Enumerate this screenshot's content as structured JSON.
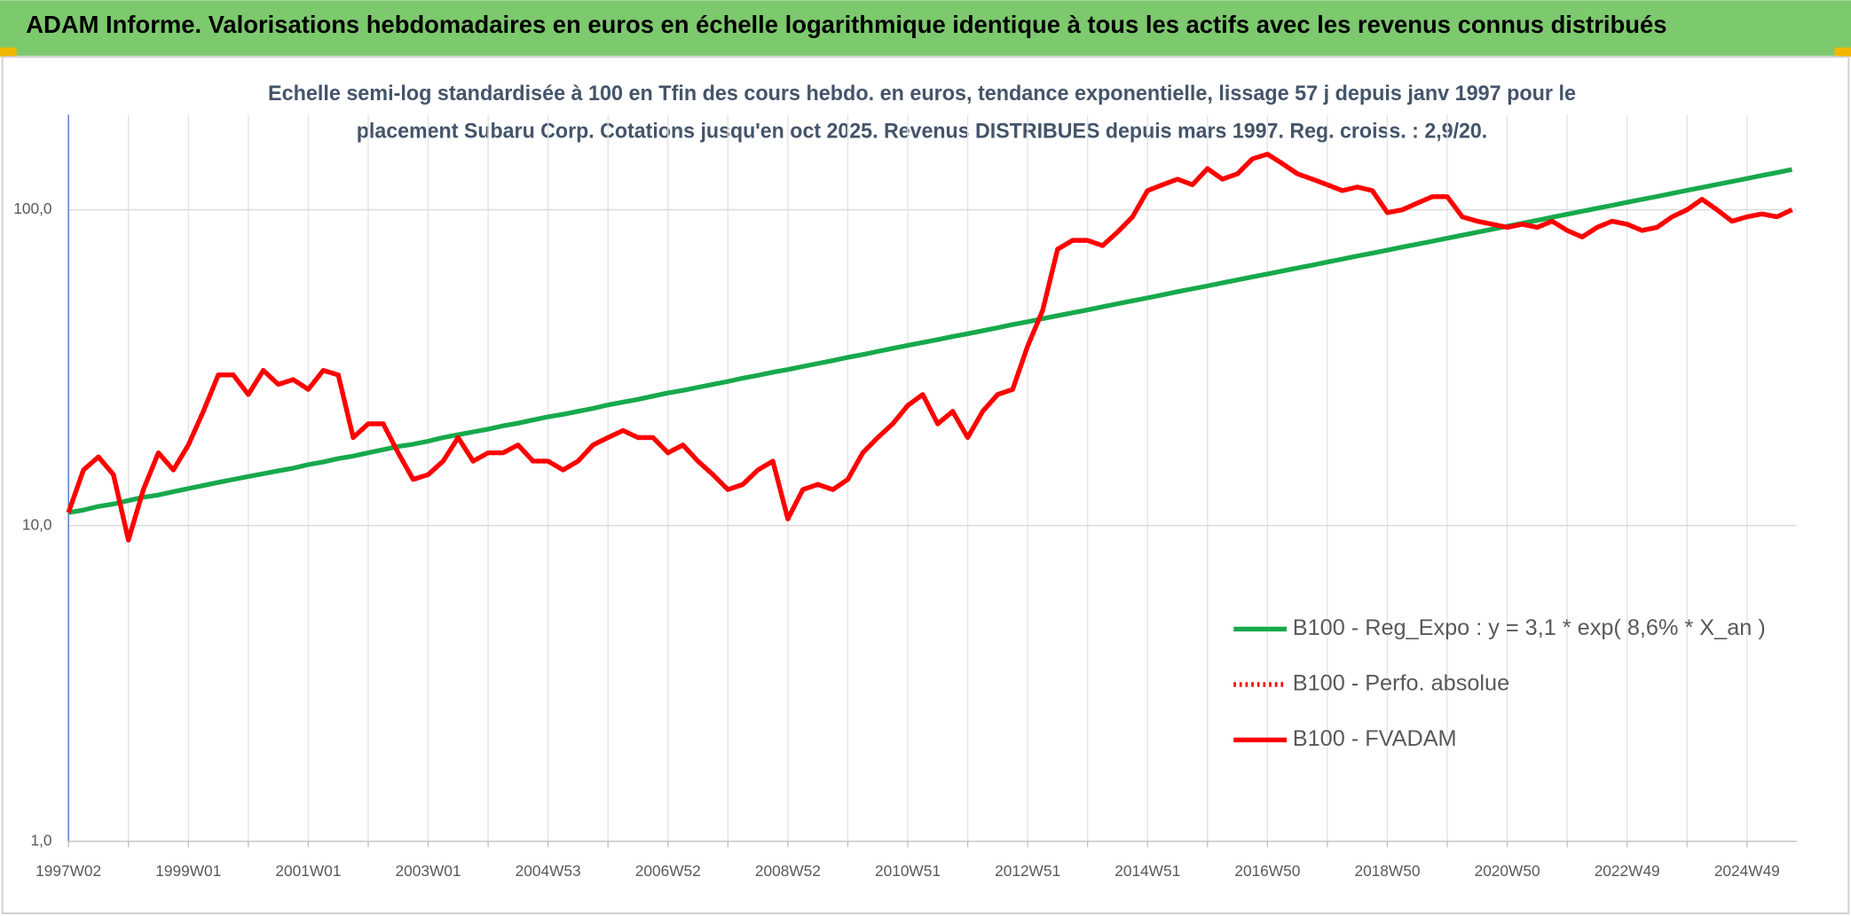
{
  "header": {
    "title": "ADAM Informe. Valorisations hebdomadaires en euros en échelle logarithmique identique à tous les actifs avec les revenus connus distribués"
  },
  "chart_data": {
    "type": "line",
    "title": [
      "Echelle semi-log standardisée à 100 en Tfin des cours hebdo. en euros, tendance exponentielle, lissage 57 j depuis janv 1997 pour le",
      "placement Subaru Corp. Cotations jusqu'en oct 2025. Revenus DISTRIBUES depuis mars 1997. Reg. croiss. : 2,9/20."
    ],
    "categories": [
      "1997W02",
      null,
      null,
      null,
      null,
      null,
      null,
      null,
      "1999W01",
      null,
      null,
      null,
      null,
      null,
      null,
      null,
      "2001W01",
      null,
      null,
      null,
      null,
      null,
      null,
      null,
      "2003W01",
      null,
      null,
      null,
      null,
      null,
      null,
      null,
      "2004W53",
      null,
      null,
      null,
      null,
      null,
      null,
      null,
      "2006W52",
      null,
      null,
      null,
      null,
      null,
      null,
      null,
      "2008W52",
      null,
      null,
      null,
      null,
      null,
      null,
      null,
      "2010W51",
      null,
      null,
      null,
      null,
      null,
      null,
      null,
      "2012W51",
      null,
      null,
      null,
      null,
      null,
      null,
      null,
      "2014W51",
      null,
      null,
      null,
      null,
      null,
      null,
      null,
      "2016W50",
      null,
      null,
      null,
      null,
      null,
      null,
      null,
      "2018W50",
      null,
      null,
      null,
      null,
      null,
      null,
      null,
      "2020W50",
      null,
      null,
      null,
      null,
      null,
      null,
      null,
      "2022W49",
      null,
      null,
      null,
      null,
      null,
      null,
      null,
      "2024W49",
      null,
      null,
      null
    ],
    "log_scale": true,
    "ylim": [
      1,
      200
    ],
    "yticks": [
      {
        "value": 1,
        "label": "1,0"
      },
      {
        "value": 10,
        "label": "10,0"
      },
      {
        "value": 100,
        "label": "100,0"
      }
    ],
    "grid": true,
    "legend": "right",
    "series": [
      {
        "name": "B100 - Reg_Expo : y = 3,1 * exp( 8,6% *  X_an )",
        "color": "#17a94c",
        "style": "solid",
        "values": [
          11.0,
          11.2,
          11.5,
          11.7,
          12.0,
          12.3,
          12.5,
          12.8,
          13.1,
          13.4,
          13.7,
          14.0,
          14.3,
          14.6,
          14.9,
          15.2,
          15.6,
          15.9,
          16.3,
          16.6,
          17.0,
          17.4,
          17.8,
          18.1,
          18.5,
          19.0,
          19.4,
          19.8,
          20.2,
          20.7,
          21.1,
          21.6,
          22.1,
          22.5,
          23.0,
          23.5,
          24.1,
          24.6,
          25.1,
          25.7,
          26.3,
          26.8,
          27.4,
          28.0,
          28.6,
          29.3,
          29.9,
          30.6,
          31.2,
          31.9,
          32.6,
          33.3,
          34.1,
          34.8,
          35.6,
          36.4,
          37.2,
          38.0,
          38.8,
          39.7,
          40.5,
          41.4,
          42.3,
          43.3,
          44.2,
          45.2,
          46.2,
          47.2,
          48.2,
          49.3,
          50.4,
          51.5,
          52.6,
          53.8,
          55.0,
          56.2,
          57.4,
          58.7,
          60.0,
          61.3,
          62.6,
          64.0,
          65.4,
          66.8,
          68.3,
          69.8,
          71.4,
          72.9,
          74.5,
          76.2,
          77.8,
          79.5,
          81.3,
          83.1,
          84.9,
          86.8,
          88.7,
          90.6,
          92.6,
          94.7,
          96.8,
          98.9,
          101.1,
          103.3,
          105.6,
          107.9,
          110.2,
          112.7,
          115.2,
          117.7,
          120.3,
          122.9,
          125.6,
          128.4,
          131.2,
          134.1
        ]
      },
      {
        "name": "B100 - Perfo. absolue",
        "color": "#ff0000",
        "style": "dotted",
        "values": [
          11,
          15,
          16.5,
          14.5,
          9,
          13,
          17,
          15,
          18,
          23,
          30,
          30,
          26,
          31,
          28,
          29,
          27,
          31,
          30,
          19,
          21,
          21,
          17,
          14,
          14.5,
          16,
          19,
          16,
          17,
          17,
          18,
          16,
          16,
          15,
          16,
          18,
          19,
          20,
          19,
          19,
          17,
          18,
          16,
          14.5,
          13,
          13.5,
          15,
          16,
          10.5,
          13,
          13.5,
          13,
          14,
          17,
          19,
          21,
          24,
          26,
          21,
          23,
          19,
          23,
          26,
          27,
          37,
          48,
          75,
          80,
          80,
          77,
          85,
          95,
          115,
          120,
          125,
          120,
          135,
          125,
          130,
          145,
          150,
          140,
          130,
          125,
          120,
          115,
          118,
          115,
          98,
          100,
          105,
          110,
          110,
          95,
          92,
          90,
          88,
          90,
          88,
          92,
          86,
          82,
          88,
          92,
          90,
          86,
          88,
          95,
          100,
          108,
          100,
          92,
          95,
          97,
          95,
          100
        ]
      },
      {
        "name": "B100 - FVADAM",
        "color": "#ff0000",
        "style": "solid",
        "values": [
          11,
          15,
          16.5,
          14.5,
          9,
          13,
          17,
          15,
          18,
          23,
          30,
          30,
          26,
          31,
          28,
          29,
          27,
          31,
          30,
          19,
          21,
          21,
          17,
          14,
          14.5,
          16,
          19,
          16,
          17,
          17,
          18,
          16,
          16,
          15,
          16,
          18,
          19,
          20,
          19,
          19,
          17,
          18,
          16,
          14.5,
          13,
          13.5,
          15,
          16,
          10.5,
          13,
          13.5,
          13,
          14,
          17,
          19,
          21,
          24,
          26,
          21,
          23,
          19,
          23,
          26,
          27,
          37,
          48,
          75,
          80,
          80,
          77,
          85,
          95,
          115,
          120,
          125,
          120,
          135,
          125,
          130,
          145,
          150,
          140,
          130,
          125,
          120,
          115,
          118,
          115,
          98,
          100,
          105,
          110,
          110,
          95,
          92,
          90,
          88,
          90,
          88,
          92,
          86,
          82,
          88,
          92,
          90,
          86,
          88,
          95,
          100,
          108,
          100,
          92,
          95,
          97,
          95,
          100
        ]
      }
    ]
  }
}
